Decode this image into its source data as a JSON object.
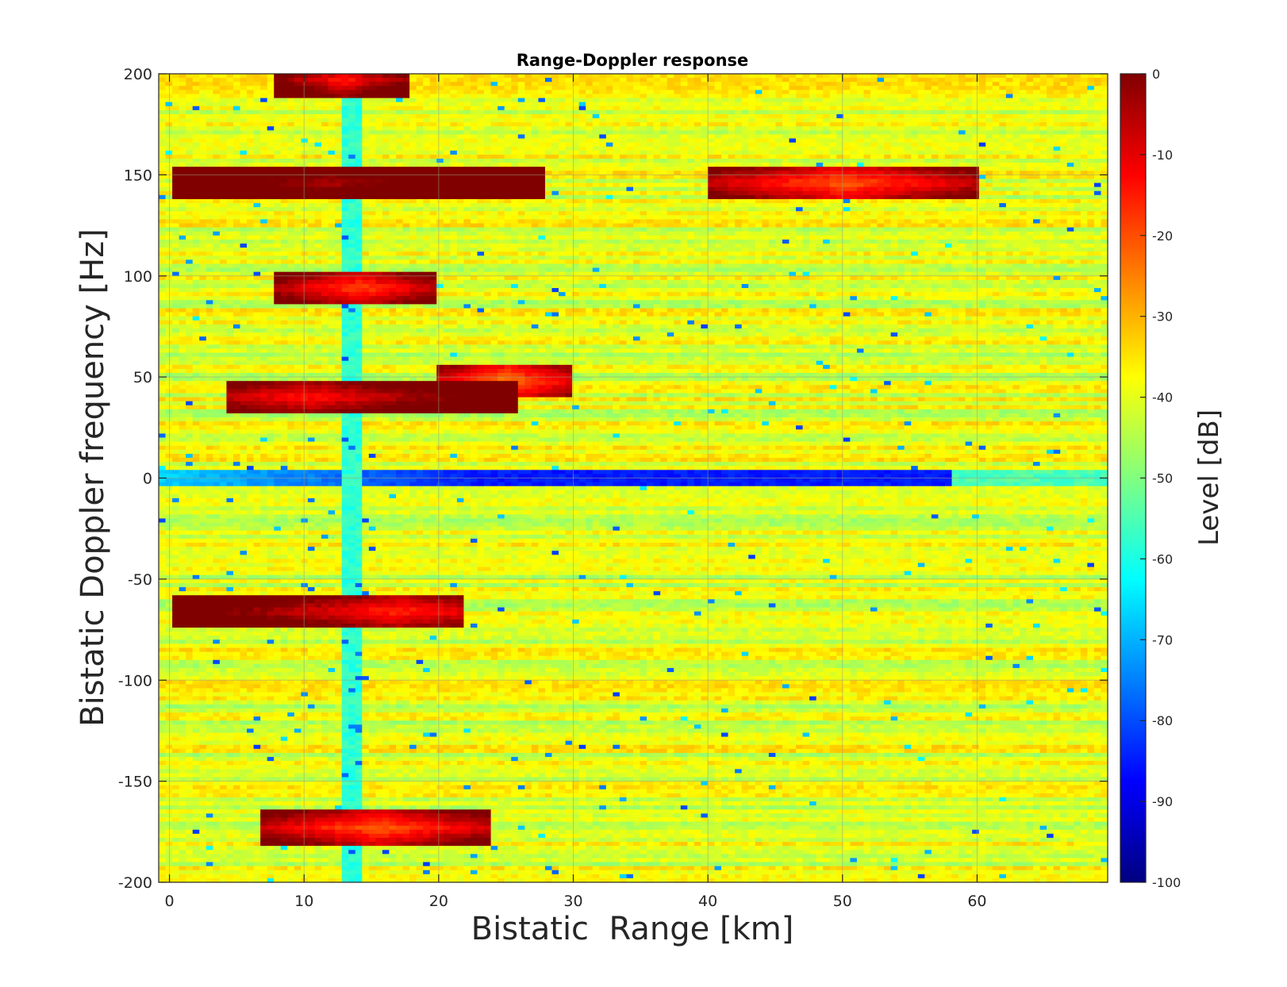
{
  "chart_data": {
    "type": "heatmap",
    "title": "Range-Doppler response",
    "xlabel": "Bistatic  Range [km]",
    "ylabel": "Bistatic Doppler frequency [Hz]",
    "colorbar_label": "Level [dB]",
    "xlim": [
      -0.8,
      69.7
    ],
    "ylim": [
      -200,
      200
    ],
    "xticks": [
      0,
      10,
      20,
      30,
      40,
      50,
      60
    ],
    "yticks": [
      -200,
      -150,
      -100,
      -50,
      0,
      50,
      100,
      150,
      200
    ],
    "clim": [
      -100,
      0
    ],
    "cticks": [
      0,
      -10,
      -20,
      -30,
      -40,
      -50,
      -60,
      -70,
      -80,
      -90,
      -100
    ],
    "colormap": "jet",
    "background_level": -40,
    "grid": "on",
    "features": [
      {
        "feature": "zero-Doppler clutter ridge",
        "doppler": 0,
        "range": [
          -0.8,
          58
        ],
        "level": -85
      },
      {
        "feature": "range gap",
        "doppler": [
          -200,
          200
        ],
        "range": [
          12.9,
          14.3
        ],
        "level": -58
      },
      {
        "feature": "target echo",
        "doppler": 146,
        "range": [
          0,
          28
        ],
        "peak_range": 12,
        "level": -5
      },
      {
        "feature": "target echo",
        "doppler": 146,
        "range": [
          40,
          60
        ],
        "level": -22
      },
      {
        "feature": "target echo",
        "doppler": 94,
        "range": [
          8,
          20
        ],
        "level": -20
      },
      {
        "feature": "target echo",
        "doppler": 40,
        "range": [
          4,
          26
        ],
        "peak_range": 10,
        "level": -15
      },
      {
        "feature": "target echo",
        "doppler": 48,
        "range": [
          20,
          30
        ],
        "level": -25
      },
      {
        "feature": "target echo",
        "doppler": -66,
        "range": [
          0,
          22
        ],
        "peak_range": 17,
        "level": -17
      },
      {
        "feature": "target echo",
        "doppler": -173,
        "range": [
          7,
          24
        ],
        "level": -22
      },
      {
        "feature": "target echo",
        "doppler": 197,
        "range": [
          8,
          18
        ],
        "level": -15
      }
    ]
  }
}
